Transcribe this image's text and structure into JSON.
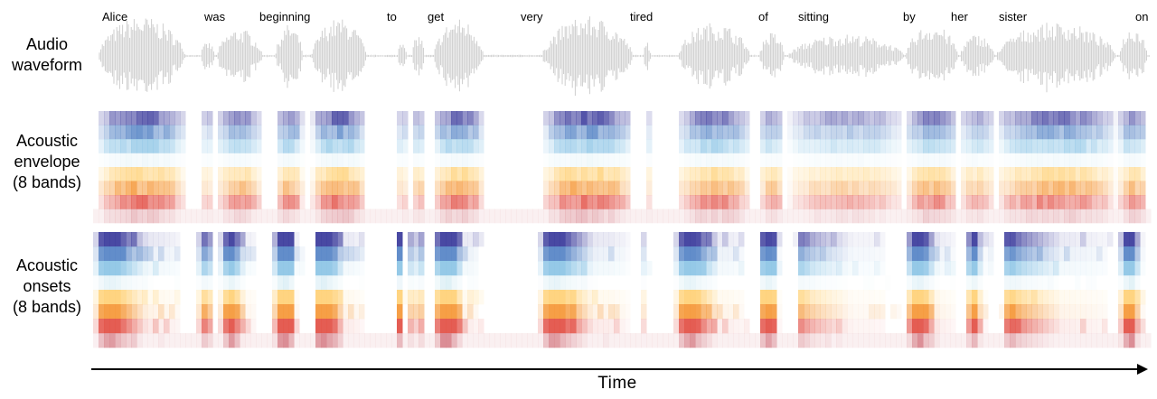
{
  "rows": {
    "waveform": [
      "Audio",
      "waveform"
    ],
    "envelope": [
      "Acoustic",
      "envelope",
      "(8 bands)"
    ],
    "onsets": [
      "Acoustic",
      "onsets",
      "(8 bands)"
    ]
  },
  "words": [
    "Alice",
    "was",
    "beginning",
    "to",
    "get",
    "very",
    "tired",
    "of",
    "sitting",
    "by",
    "her",
    "sister",
    "on"
  ],
  "axis_label": "Time",
  "colors": {
    "waveform": "#cdcdcd",
    "bands": [
      "#3f3f9e",
      "#5a87c7",
      "#8fc6e6",
      "#cfe9f2",
      "#ffd27a",
      "#f59a3c",
      "#e3544a",
      "#d9878f"
    ]
  }
}
